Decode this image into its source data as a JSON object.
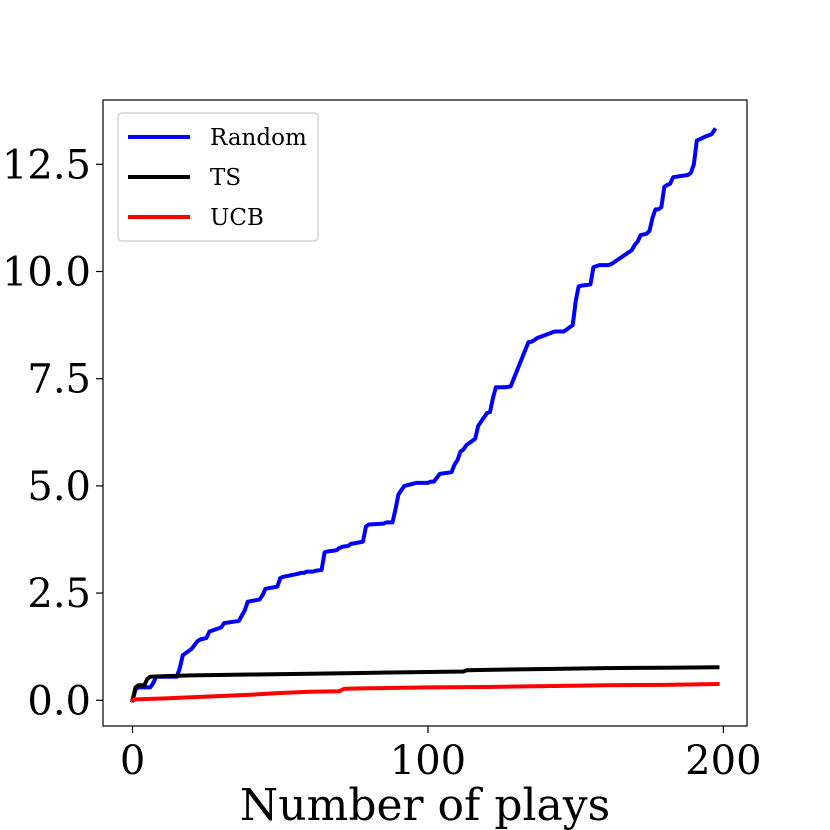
{
  "chart_data": {
    "type": "line",
    "title": "",
    "xlabel": "Number of plays",
    "ylabel": "",
    "xlim": [
      -10,
      208
    ],
    "ylim": [
      -0.6,
      14.0
    ],
    "x_ticks": [
      0,
      100,
      200
    ],
    "x_tick_labels": [
      "0",
      "100",
      "200"
    ],
    "y_ticks": [
      0.0,
      2.5,
      5.0,
      7.5,
      10.0,
      12.5
    ],
    "y_tick_labels": [
      "0.0",
      "2.5",
      "5.0",
      "7.5",
      "10.0",
      "12.5"
    ],
    "grid": false,
    "legend_position": "top-left",
    "series": [
      {
        "name": "Random",
        "color": "#0000ff",
        "x": [
          0,
          1,
          2,
          6,
          7,
          8,
          15,
          16,
          17,
          19,
          20,
          22,
          23,
          25,
          26,
          28,
          30,
          31,
          36,
          38,
          39,
          43,
          44,
          45,
          49,
          50,
          51,
          56,
          57,
          58,
          59,
          61,
          62,
          64,
          65,
          66,
          69,
          70,
          71,
          73,
          74,
          75,
          78,
          79,
          80,
          85,
          86,
          88,
          89,
          90,
          91,
          92,
          95,
          96,
          100,
          101,
          102,
          104,
          108,
          109,
          110,
          111,
          112,
          113,
          114,
          115,
          116,
          117,
          120,
          121,
          122,
          123,
          124,
          126,
          127,
          128,
          134,
          135,
          136,
          137,
          141,
          142,
          143,
          144,
          146,
          148,
          149,
          150,
          151,
          152,
          153,
          155,
          156,
          158,
          161,
          162,
          168,
          169,
          170,
          171,
          172,
          174,
          175,
          176,
          177,
          178,
          179,
          180,
          181,
          182,
          183,
          188,
          189,
          190,
          191,
          194,
          196,
          197
        ],
        "y": [
          0.0,
          0.25,
          0.3,
          0.3,
          0.4,
          0.55,
          0.55,
          0.75,
          1.05,
          1.15,
          1.2,
          1.38,
          1.42,
          1.45,
          1.6,
          1.65,
          1.7,
          1.8,
          1.85,
          2.1,
          2.3,
          2.35,
          2.45,
          2.6,
          2.65,
          2.85,
          2.88,
          2.95,
          2.97,
          2.97,
          3.0,
          3.0,
          3.02,
          3.04,
          3.45,
          3.47,
          3.5,
          3.55,
          3.58,
          3.6,
          3.65,
          3.66,
          3.7,
          4.05,
          4.1,
          4.12,
          4.15,
          4.15,
          4.45,
          4.8,
          4.9,
          5.0,
          5.05,
          5.07,
          5.07,
          5.1,
          5.1,
          5.28,
          5.32,
          5.5,
          5.6,
          5.8,
          5.85,
          5.95,
          6.0,
          6.05,
          6.1,
          6.4,
          6.7,
          6.72,
          7.05,
          7.3,
          7.3,
          7.3,
          7.31,
          7.32,
          8.35,
          8.36,
          8.4,
          8.45,
          8.55,
          8.58,
          8.6,
          8.6,
          8.6,
          8.7,
          8.75,
          9.3,
          9.65,
          9.67,
          9.68,
          9.7,
          10.1,
          10.15,
          10.15,
          10.17,
          10.45,
          10.5,
          10.62,
          10.7,
          10.85,
          10.88,
          10.95,
          11.25,
          11.45,
          11.45,
          11.5,
          11.97,
          12.02,
          12.05,
          12.2,
          12.25,
          12.3,
          12.5,
          13.05,
          13.15,
          13.2,
          13.3
        ],
        "line_width": 4
      },
      {
        "name": "TS",
        "color": "#000000",
        "x": [
          0,
          1,
          2,
          4,
          5,
          6,
          10,
          20,
          40,
          60,
          80,
          100,
          112,
          113,
          120,
          140,
          160,
          180,
          198
        ],
        "y": [
          0.0,
          0.3,
          0.35,
          0.35,
          0.5,
          0.55,
          0.56,
          0.58,
          0.6,
          0.62,
          0.64,
          0.66,
          0.67,
          0.7,
          0.71,
          0.73,
          0.75,
          0.76,
          0.77
        ],
        "line_width": 4
      },
      {
        "name": "UCB",
        "color": "#ff0000",
        "x": [
          0,
          1,
          10,
          20,
          30,
          40,
          50,
          60,
          70,
          71,
          72,
          80,
          100,
          120,
          140,
          160,
          180,
          198
        ],
        "y": [
          0.0,
          0.02,
          0.04,
          0.07,
          0.1,
          0.13,
          0.17,
          0.2,
          0.21,
          0.25,
          0.27,
          0.28,
          0.3,
          0.31,
          0.33,
          0.35,
          0.36,
          0.38
        ],
        "line_width": 4
      }
    ]
  }
}
